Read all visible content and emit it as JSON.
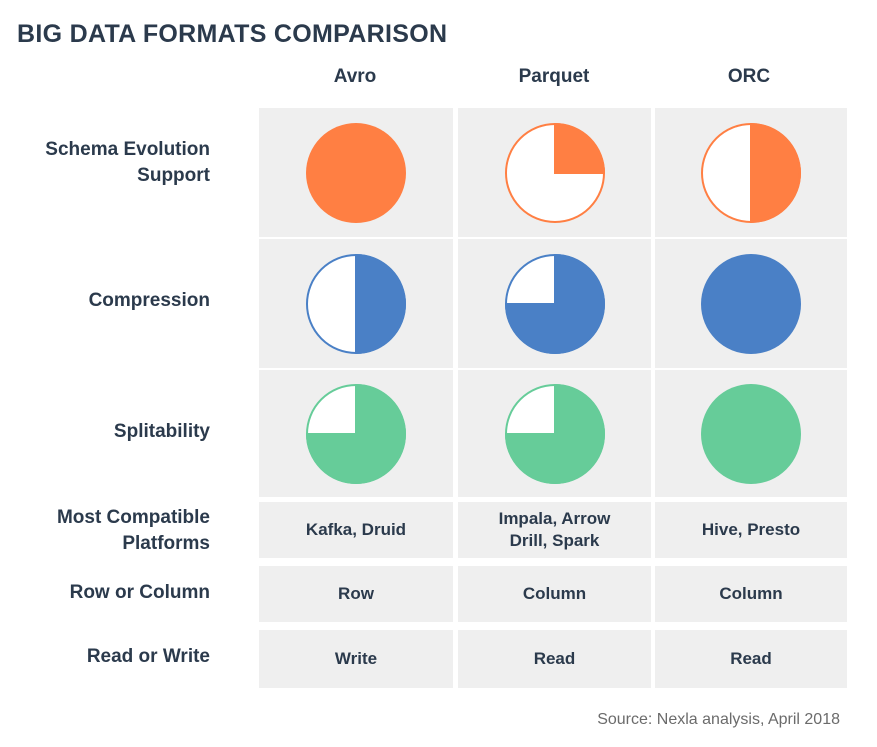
{
  "title": "BIG DATA FORMATS COMPARISON",
  "source": "Source: Nexla analysis, April 2018",
  "chart_data": {
    "type": "table",
    "columns": [
      "Avro",
      "Parquet",
      "ORC"
    ],
    "rows": [
      {
        "label": "Schema Evolution Support",
        "kind": "harvey",
        "color": "#ff7f43",
        "values": [
          1.0,
          0.25,
          0.5
        ]
      },
      {
        "label": "Compression",
        "kind": "harvey",
        "color": "#4a80c6",
        "values": [
          0.5,
          0.75,
          1.0
        ]
      },
      {
        "label": "Splitability",
        "kind": "harvey",
        "color": "#66cc99",
        "values": [
          0.75,
          0.75,
          1.0
        ]
      },
      {
        "label": "Most Compatible Platforms",
        "kind": "text",
        "values": [
          "Kafka, Druid",
          "Impala, Arrow Drill, Spark",
          "Hive, Presto"
        ]
      },
      {
        "label": "Row or Column",
        "kind": "text",
        "values": [
          "Row",
          "Column",
          "Column"
        ]
      },
      {
        "label": "Read or Write",
        "kind": "text",
        "values": [
          "Write",
          "Read",
          "Read"
        ]
      }
    ]
  }
}
